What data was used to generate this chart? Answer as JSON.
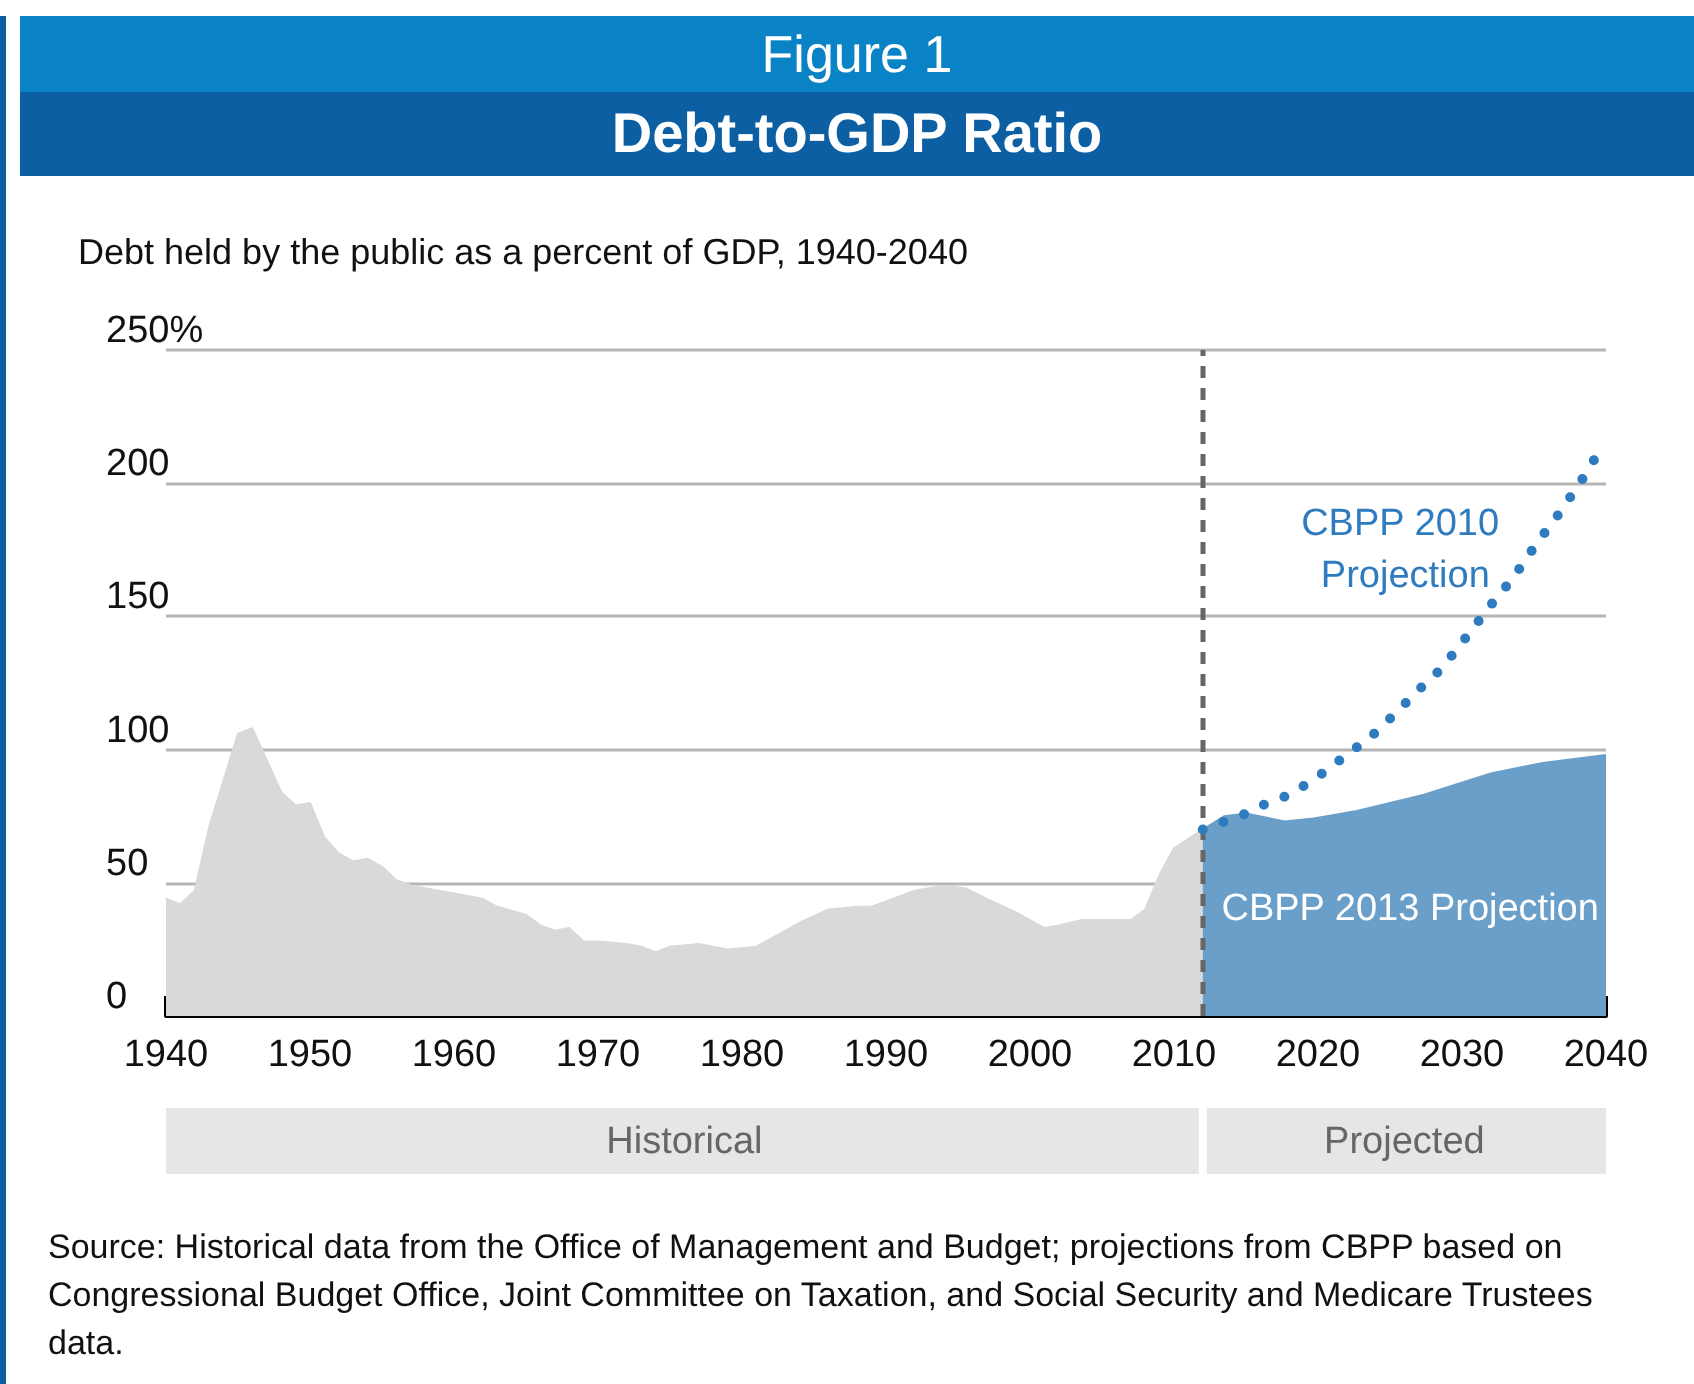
{
  "chart_data": {
    "type": "area",
    "title": "Debt-to-GDP Ratio",
    "subtitle": "Debt held by the public as a percent of GDP, 1940-2040",
    "annotations": [
      "Figure 1",
      "Historical",
      "Projected",
      "Source: Historical data from the Office of Management and Budget; projections from CBPP based on Congressional Budget Office, Joint Committee on Taxation, and Social Security and Medicare Trustees data."
    ],
    "series": [
      {
        "color": "#d9d9d9",
        "x": [
          1940,
          1941,
          1942,
          1943,
          1945,
          1946,
          1948,
          1949,
          1950,
          1951,
          1952,
          1953,
          1954,
          1955,
          1956,
          1957,
          1958,
          1960,
          1962,
          1963,
          1965,
          1966,
          1967,
          1968,
          1969,
          1970,
          1972,
          1973,
          1974,
          1975,
          1977,
          1979,
          1981,
          1983,
          1984,
          1986,
          1988,
          1989,
          1990,
          1992,
          1994,
          1995.5,
          1997,
          1999,
          2001,
          2002,
          2003.6,
          2005,
          2007,
          2008,
          2009,
          2010,
          2012
        ],
        "values": [
          44,
          42,
          47,
          71,
          106,
          108,
          84,
          79,
          80,
          67,
          61,
          58,
          59,
          56,
          51,
          49,
          48,
          46,
          44,
          41,
          38,
          34,
          32,
          33,
          28,
          28,
          27,
          26,
          24,
          26,
          27,
          25,
          26,
          32,
          35,
          40,
          41,
          41,
          43,
          47,
          49,
          48,
          44,
          39,
          33,
          34,
          36,
          36,
          36,
          40,
          53,
          63,
          70
        ]
      },
      {
        "name": "CBPP 2013 Projection",
        "color": "#6a9fca",
        "x": [
          2012,
          2013.5,
          2015,
          2017.7,
          2019.5,
          2022.7,
          2027.3,
          2032,
          2035.6,
          2040
        ],
        "values": [
          70,
          75,
          76,
          73,
          74,
          77,
          83,
          91,
          95,
          98
        ]
      },
      {
        "type": "line",
        "name": "CBPP 2010 Projection",
        "color": "#2f7bbf",
        "line_style": "dotted",
        "x": [
          2012,
          2015,
          2016.5,
          2018,
          2019.5,
          2020.8,
          2022.2,
          2023.5,
          2024.7,
          2026,
          2027.1,
          2028.3,
          2029.4,
          2030.4,
          2031.4,
          2032.4,
          2033.5,
          2034.5,
          2035.4,
          2036.4,
          2037.3,
          2038.3,
          2039.2
        ],
        "values": [
          70,
          76,
          80,
          83,
          88,
          93,
          99,
          104,
          110,
          117,
          123,
          129,
          136,
          143,
          150,
          157,
          164,
          172,
          179,
          186,
          193,
          201,
          209
        ]
      }
    ],
    "xlim": [
      1940,
      2040
    ],
    "xticks": [
      1940,
      1950,
      1960,
      1970,
      1980,
      1990,
      2000,
      2010,
      2020,
      2030,
      2040
    ],
    "ylim": [
      0,
      250
    ],
    "yticks": [
      0,
      50,
      100,
      150,
      200,
      {
        "value": 250,
        "label": "250%"
      }
    ],
    "grid": "y",
    "ref_lines": [
      {
        "axis": "x",
        "value": 2012,
        "color": "#666666",
        "line_style": "dashed"
      }
    ]
  }
}
